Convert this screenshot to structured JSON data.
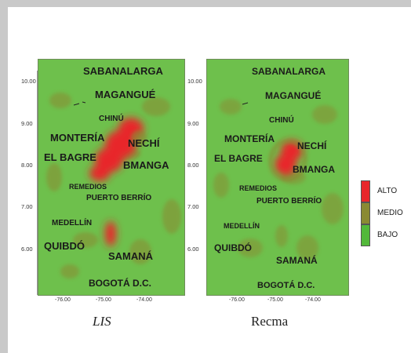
{
  "colors": {
    "alto": "#e8262b",
    "medio": "#8a8a33",
    "bajo": "#52b83a",
    "base": "#6ec04c"
  },
  "yticks": [
    "10.00",
    "9.00",
    "8.00",
    "7.00",
    "6.00"
  ],
  "xticks": [
    "-76.00",
    "-75.00",
    "-74.00"
  ],
  "maps": [
    {
      "caption": "LIS",
      "cities": {
        "sabanalarga": "SABANALARGA",
        "magangue": "MAGANGUÉ",
        "chinu": "CHINÚ",
        "monteria": "MONTERÍA",
        "nechi": "NECHÍ",
        "elbagre": "EL BAGRE",
        "bmanga": "BMANGA",
        "remedios": "REMEDIOS",
        "puertoberrio": "PUERTO BERRÍO",
        "medellin": "MEDELLÍN",
        "quibdo": "QUIBDÓ",
        "samana": "SAMANÁ",
        "bogota": "BOGOTÁ D.C."
      }
    },
    {
      "caption": "Recma",
      "cities": {
        "sabanalarga": "SABANALARGA",
        "magangue": "MAGANGUÉ",
        "chinu": "CHINÚ",
        "monteria": "MONTERÍA",
        "nechi": "NECHÍ",
        "elbagre": "EL BAGRE",
        "bmanga": "BMANGA",
        "remedios": "REMEDIOS",
        "puertoberrio": "PUERTO BERRÍO",
        "medellin": "MEDELLÍN",
        "quibdo": "QUIBDÓ",
        "samana": "SAMANÁ",
        "bogota": "BOGOTÁ D.C."
      }
    }
  ],
  "legend": {
    "alto": "ALTO",
    "medio": "MEDIO",
    "bajo": "BAJO"
  }
}
